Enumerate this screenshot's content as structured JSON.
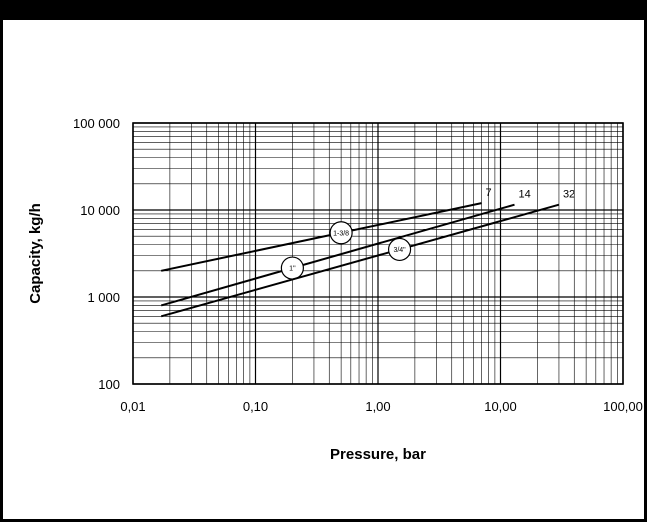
{
  "header": {
    "title": ""
  },
  "chart_data": {
    "type": "line",
    "title": "",
    "xlabel": "Pressure, bar",
    "ylabel": "Capacity, kg/h",
    "x_scale": "log",
    "y_scale": "log",
    "xlim": [
      0.01,
      100
    ],
    "ylim": [
      100,
      100000
    ],
    "grid": true,
    "x_ticks": [
      0.01,
      0.1,
      1,
      10,
      100
    ],
    "x_tick_labels": [
      "0,01",
      "0,10",
      "1,00",
      "10,00",
      "100,00"
    ],
    "y_ticks": [
      100,
      1000,
      10000,
      100000
    ],
    "y_tick_labels": [
      "100",
      "1 000",
      "10 000",
      "100 000"
    ],
    "series": [
      {
        "name": "7",
        "size": "1-3/8\"",
        "size_label_text": "1-3/8",
        "size_at_x": 0.5,
        "x": [
          0.017,
          7
        ],
        "y": [
          2000,
          12000
        ]
      },
      {
        "name": "14",
        "size": "1\"",
        "size_label_text": "1\"",
        "size_at_x": 0.2,
        "x": [
          0.017,
          13
        ],
        "y": [
          800,
          11500
        ]
      },
      {
        "name": "32",
        "size": "3/4\"",
        "size_label_text": "3/4\"",
        "size_at_x": 1.5,
        "x": [
          0.017,
          30
        ],
        "y": [
          600,
          11500
        ]
      }
    ]
  }
}
